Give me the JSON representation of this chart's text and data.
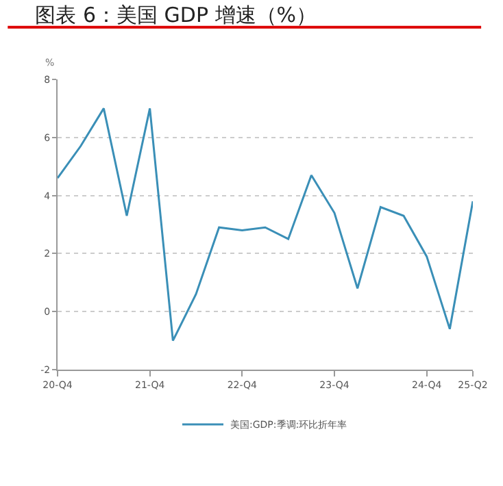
{
  "chart_data": {
    "type": "line",
    "title": "图表 6：美国 GDP 增速（%）",
    "ylabel": "%",
    "categories": [
      "20-Q4",
      null,
      null,
      null,
      "21-Q4",
      null,
      null,
      null,
      "22-Q4",
      null,
      null,
      null,
      "23-Q4",
      null,
      null,
      null,
      "24-Q4",
      null,
      "25-Q2"
    ],
    "series": [
      {
        "name": "美国:GDP:季调:环比折年率",
        "color": "#3a8fb7",
        "values": [
          4.6,
          5.7,
          7.0,
          3.3,
          7.0,
          -1.0,
          0.6,
          2.9,
          2.8,
          2.9,
          2.5,
          4.7,
          3.4,
          0.8,
          3.6,
          3.3,
          1.9,
          -0.6,
          3.8
        ]
      }
    ],
    "ylim": [
      -2,
      8
    ],
    "yticks": [
      -2,
      0,
      2,
      4,
      6,
      8
    ],
    "grid": "y",
    "legend": "bottom",
    "marker": "none",
    "line_style": "solid"
  }
}
